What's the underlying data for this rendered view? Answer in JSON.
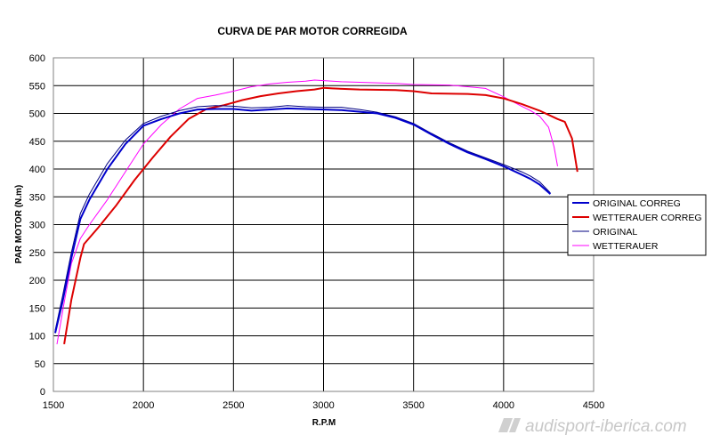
{
  "chart_data": {
    "type": "line",
    "title": "CURVA DE PAR MOTOR CORREGIDA",
    "xlabel": "R.P.M",
    "ylabel": "PAR MOTOR (N.m)",
    "xlim": [
      1500,
      4500
    ],
    "ylim": [
      0,
      600
    ],
    "xticks": [
      1500,
      2000,
      2500,
      3000,
      3500,
      4000,
      4500
    ],
    "yticks": [
      0,
      50,
      100,
      150,
      200,
      250,
      300,
      350,
      400,
      450,
      500,
      550,
      600
    ],
    "grid": "horizontal and vertical",
    "legend_position": "right",
    "series": [
      {
        "name": "ORIGINAL CORREG",
        "color": "#0000cc",
        "x": [
          1510,
          1550,
          1600,
          1650,
          1700,
          1800,
          1900,
          2000,
          2100,
          2200,
          2300,
          2400,
          2500,
          2600,
          2700,
          2800,
          2900,
          3000,
          3100,
          3200,
          3300,
          3400,
          3500,
          3600,
          3700,
          3800,
          3900,
          4000,
          4100,
          4150,
          4200,
          4260
        ],
        "y": [
          105,
          160,
          240,
          310,
          345,
          400,
          445,
          478,
          490,
          500,
          507,
          508,
          508,
          505,
          507,
          509,
          508,
          507,
          506,
          503,
          500,
          492,
          480,
          462,
          445,
          430,
          418,
          405,
          390,
          382,
          372,
          355
        ]
      },
      {
        "name": "WETTERAUER CORREG",
        "color": "#dd0000",
        "x": [
          1560,
          1600,
          1650,
          1670,
          1750,
          1850,
          1950,
          2050,
          2150,
          2250,
          2350,
          2450,
          2550,
          2650,
          2750,
          2850,
          2950,
          3000,
          3050,
          3200,
          3400,
          3500,
          3600,
          3800,
          3900,
          4000,
          4100,
          4200,
          4300,
          4340,
          4380,
          4410
        ],
        "y": [
          85,
          165,
          240,
          265,
          295,
          335,
          380,
          420,
          458,
          490,
          508,
          515,
          524,
          531,
          536,
          540,
          543,
          546,
          545,
          543,
          542,
          540,
          536,
          535,
          533,
          527,
          517,
          505,
          490,
          485,
          455,
          395
        ]
      },
      {
        "name": "ORIGINAL",
        "color": "#000080",
        "x": [
          1510,
          1550,
          1600,
          1650,
          1700,
          1800,
          1900,
          2000,
          2100,
          2200,
          2300,
          2400,
          2500,
          2600,
          2700,
          2800,
          2900,
          3000,
          3100,
          3200,
          3300,
          3400,
          3500,
          3600,
          3700,
          3800,
          3900,
          4000,
          4100,
          4150,
          4200,
          4260
        ],
        "y": [
          110,
          170,
          250,
          320,
          355,
          410,
          452,
          482,
          495,
          505,
          512,
          514,
          513,
          510,
          511,
          514,
          512,
          511,
          511,
          507,
          502,
          494,
          482,
          464,
          447,
          432,
          420,
          408,
          395,
          387,
          377,
          357
        ]
      },
      {
        "name": "WETTERAUER",
        "color": "#ff00ff",
        "x": [
          1520,
          1560,
          1600,
          1650,
          1700,
          1800,
          1900,
          2000,
          2100,
          2200,
          2300,
          2400,
          2500,
          2600,
          2700,
          2800,
          2900,
          2950,
          3000,
          3100,
          3200,
          3300,
          3400,
          3500,
          3700,
          3900,
          4000,
          4100,
          4150,
          4200,
          4250,
          4280,
          4300
        ],
        "y": [
          85,
          160,
          230,
          275,
          300,
          345,
          395,
          445,
          480,
          508,
          527,
          533,
          540,
          548,
          553,
          556,
          558,
          560,
          559,
          557,
          556,
          555,
          554,
          552,
          551,
          545,
          530,
          513,
          505,
          495,
          475,
          440,
          405
        ]
      }
    ]
  },
  "watermark": {
    "text": "audisport-iberica.com"
  }
}
